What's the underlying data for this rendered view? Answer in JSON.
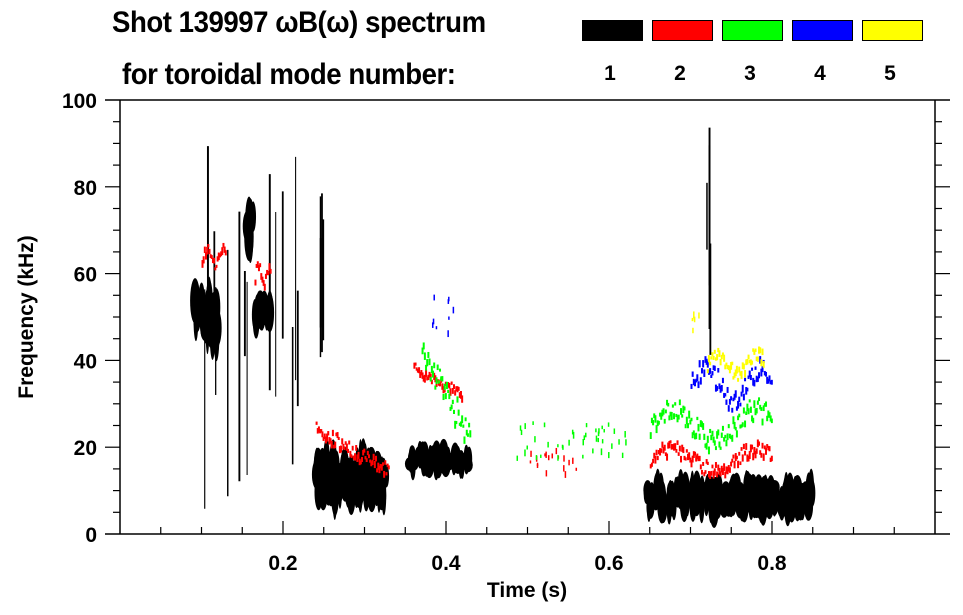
{
  "chart_data": {
    "type": "heatmap",
    "title_line1": "Shot 139997 ωB(ω) spectrum",
    "title_line2": "for toroidal mode number:",
    "xlabel": "Time (s)",
    "ylabel": "Frequency (kHz)",
    "xlim": [
      0.0,
      1.0
    ],
    "ylim": [
      0,
      100
    ],
    "x_ticks": [
      0.2,
      0.4,
      0.6,
      0.8
    ],
    "x_tick_labels": [
      "0.2",
      "0.4",
      "0.6",
      "0.8"
    ],
    "x_minor_step": 0.05,
    "y_ticks": [
      0,
      20,
      40,
      60,
      80,
      100
    ],
    "y_tick_labels": [
      "0",
      "20",
      "40",
      "60",
      "80",
      "100"
    ],
    "y_minor_step": 5,
    "grid": false,
    "legend": {
      "placement": "top-right",
      "entries": [
        {
          "mode": "1",
          "color": "#000000"
        },
        {
          "mode": "2",
          "color": "#ff0000"
        },
        {
          "mode": "3",
          "color": "#00ff00"
        },
        {
          "mode": "4",
          "color": "#0000ff"
        },
        {
          "mode": "5",
          "color": "#ffff00"
        }
      ]
    },
    "features": [
      {
        "mode": 1,
        "t": [
          0.09,
          0.12
        ],
        "f": [
          40,
          60
        ],
        "kind": "blob"
      },
      {
        "mode": 1,
        "t": [
          0.165,
          0.185
        ],
        "f": [
          45,
          58
        ],
        "kind": "blob"
      },
      {
        "mode": 1,
        "t": [
          0.155,
          0.165
        ],
        "f": [
          62,
          80
        ],
        "kind": "blob"
      },
      {
        "mode": 1,
        "t": [
          0.1,
          0.22
        ],
        "f": [
          5,
          90
        ],
        "kind": "vertical-streaks"
      },
      {
        "mode": 1,
        "t": [
          0.24,
          0.33
        ],
        "f": [
          3,
          22
        ],
        "kind": "blob"
      },
      {
        "mode": 1,
        "t": [
          0.245,
          0.25
        ],
        "f": [
          15,
          88
        ],
        "kind": "vertical-streaks"
      },
      {
        "mode": 1,
        "t": [
          0.355,
          0.43
        ],
        "f": [
          12,
          22
        ],
        "kind": "blob"
      },
      {
        "mode": 1,
        "t": [
          0.645,
          0.85
        ],
        "f": [
          2,
          15
        ],
        "kind": "blob"
      },
      {
        "mode": 1,
        "t": [
          0.72,
          0.725
        ],
        "f": [
          40,
          100
        ],
        "kind": "vertical-streaks"
      },
      {
        "mode": 2,
        "t": [
          0.1,
          0.13
        ],
        "f": [
          60,
          67
        ],
        "kind": "band"
      },
      {
        "mode": 2,
        "t": [
          0.165,
          0.185
        ],
        "f": [
          55,
          64
        ],
        "kind": "band"
      },
      {
        "mode": 2,
        "t": [
          0.24,
          0.33
        ],
        "f": [
          14,
          24
        ],
        "kind": "chirp-down"
      },
      {
        "mode": 2,
        "t": [
          0.36,
          0.42
        ],
        "f": [
          32,
          38
        ],
        "kind": "chirp-down"
      },
      {
        "mode": 2,
        "t": [
          0.5,
          0.56
        ],
        "f": [
          14,
          20
        ],
        "kind": "scatter"
      },
      {
        "mode": 2,
        "t": [
          0.65,
          0.8
        ],
        "f": [
          12,
          22
        ],
        "kind": "band"
      },
      {
        "mode": 3,
        "t": [
          0.37,
          0.43
        ],
        "f": [
          22,
          42
        ],
        "kind": "chirp-down"
      },
      {
        "mode": 3,
        "t": [
          0.48,
          0.62
        ],
        "f": [
          18,
          26
        ],
        "kind": "scatter"
      },
      {
        "mode": 3,
        "t": [
          0.65,
          0.8
        ],
        "f": [
          18,
          32
        ],
        "kind": "band"
      },
      {
        "mode": 4,
        "t": [
          0.7,
          0.8
        ],
        "f": [
          27,
          42
        ],
        "kind": "band"
      },
      {
        "mode": 4,
        "t": [
          0.38,
          0.41
        ],
        "f": [
          45,
          56
        ],
        "kind": "scatter"
      },
      {
        "mode": 5,
        "t": [
          0.72,
          0.79
        ],
        "f": [
          34,
          44
        ],
        "kind": "band"
      },
      {
        "mode": 5,
        "t": [
          0.7,
          0.71
        ],
        "f": [
          47,
          52
        ],
        "kind": "scatter"
      }
    ]
  }
}
